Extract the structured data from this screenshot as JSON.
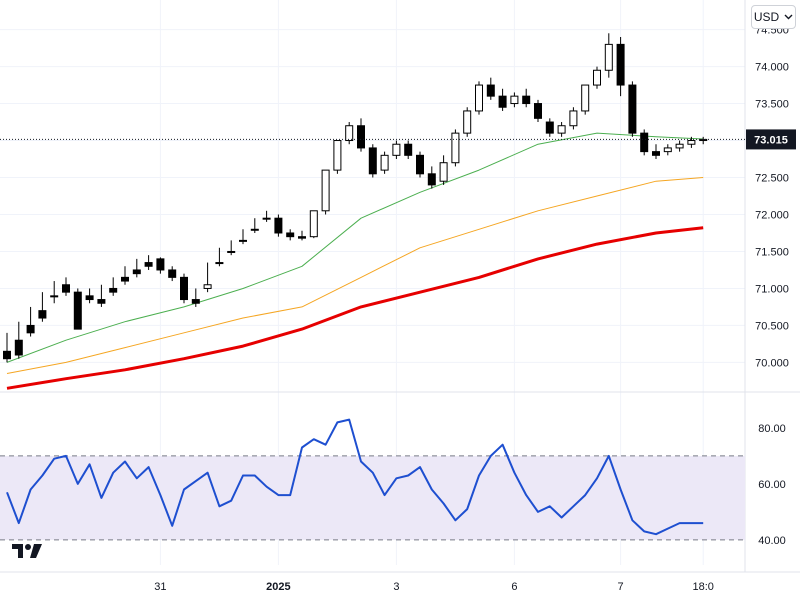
{
  "currency_selector": {
    "label": "USD",
    "icon": "chevron-down-icon"
  },
  "price_badge": {
    "value": "73.015",
    "color": "#131722"
  },
  "logo": {
    "text": "17"
  },
  "colors": {
    "up": "#ffffff",
    "down": "#000000",
    "wick": "#000000",
    "sma_short": "#4caf50",
    "sma_mid": "#f5a623",
    "sma_long": "#e60000",
    "rsi_line": "#1e4fd0",
    "rsi_band": "#ece8f7"
  },
  "chart_data": [
    {
      "type": "candlestick",
      "title": "",
      "y_ticks": [
        "74.500",
        "74.000",
        "73.500",
        "73.000",
        "72.500",
        "72.000",
        "71.500",
        "71.000",
        "70.500",
        "70.000"
      ],
      "ylim": [
        69.6,
        74.9
      ],
      "x_ticks": [
        {
          "label": "31",
          "t": 13
        },
        {
          "label": "2025",
          "t": 23,
          "bold": true
        },
        {
          "label": "3",
          "t": 33
        },
        {
          "label": "6",
          "t": 43
        },
        {
          "label": "7",
          "t": 52
        },
        {
          "label": "18:0",
          "t": 59
        }
      ],
      "last_price": 73.015,
      "candles": [
        [
          70.15,
          70.4,
          70.05,
          70.0
        ],
        [
          70.3,
          70.55,
          70.1,
          70.05
        ],
        [
          70.5,
          70.75,
          70.4,
          70.35
        ],
        [
          70.7,
          70.95,
          70.6,
          70.55
        ],
        [
          70.9,
          71.1,
          70.9,
          70.8
        ],
        [
          71.05,
          71.15,
          70.95,
          70.9
        ],
        [
          70.95,
          71.0,
          70.45,
          70.45
        ],
        [
          70.9,
          71.0,
          70.85,
          70.8
        ],
        [
          70.85,
          71.05,
          70.8,
          70.75
        ],
        [
          71.0,
          71.15,
          70.95,
          70.9
        ],
        [
          71.15,
          71.3,
          71.1,
          71.05
        ],
        [
          71.25,
          71.4,
          71.2,
          71.15
        ],
        [
          71.35,
          71.45,
          71.3,
          71.25
        ],
        [
          71.4,
          71.42,
          71.25,
          71.2
        ],
        [
          71.25,
          71.3,
          71.15,
          71.1
        ],
        [
          71.15,
          71.2,
          70.85,
          70.8
        ],
        [
          70.85,
          71.0,
          70.8,
          70.75
        ],
        [
          71.0,
          71.35,
          71.05,
          70.95
        ],
        [
          71.35,
          71.55,
          71.35,
          71.3
        ],
        [
          71.5,
          71.65,
          71.5,
          71.45
        ],
        [
          71.65,
          71.8,
          71.65,
          71.6
        ],
        [
          71.8,
          71.95,
          71.8,
          71.75
        ],
        [
          71.95,
          72.05,
          71.95,
          71.9
        ],
        [
          71.95,
          72.0,
          71.75,
          71.7
        ],
        [
          71.75,
          71.8,
          71.7,
          71.65
        ],
        [
          71.7,
          71.78,
          71.68,
          71.65
        ],
        [
          71.7,
          72.05,
          72.05,
          71.68
        ],
        [
          72.05,
          72.6,
          72.6,
          72.0
        ],
        [
          72.6,
          73.0,
          73.0,
          72.55
        ],
        [
          73.0,
          73.25,
          73.2,
          72.95
        ],
        [
          73.2,
          73.3,
          72.9,
          72.85
        ],
        [
          72.9,
          72.95,
          72.55,
          72.5
        ],
        [
          72.6,
          72.85,
          72.8,
          72.55
        ],
        [
          72.8,
          73.0,
          72.95,
          72.75
        ],
        [
          72.95,
          73.0,
          72.8,
          72.75
        ],
        [
          72.8,
          72.85,
          72.55,
          72.5
        ],
        [
          72.55,
          72.65,
          72.4,
          72.35
        ],
        [
          72.45,
          72.8,
          72.7,
          72.4
        ],
        [
          72.7,
          73.15,
          73.1,
          72.65
        ],
        [
          73.1,
          73.45,
          73.4,
          73.05
        ],
        [
          73.4,
          73.8,
          73.75,
          73.35
        ],
        [
          73.75,
          73.85,
          73.6,
          73.55
        ],
        [
          73.6,
          73.7,
          73.45,
          73.4
        ],
        [
          73.5,
          73.65,
          73.6,
          73.45
        ],
        [
          73.6,
          73.7,
          73.5,
          73.45
        ],
        [
          73.5,
          73.55,
          73.3,
          73.25
        ],
        [
          73.25,
          73.3,
          73.1,
          73.05
        ],
        [
          73.1,
          73.25,
          73.2,
          73.05
        ],
        [
          73.2,
          73.45,
          73.4,
          73.15
        ],
        [
          73.4,
          73.75,
          73.75,
          73.35
        ],
        [
          73.75,
          74.0,
          73.95,
          73.7
        ],
        [
          73.95,
          74.45,
          74.3,
          73.85
        ],
        [
          74.3,
          74.4,
          73.75,
          73.6
        ],
        [
          73.75,
          73.8,
          73.1,
          73.05
        ],
        [
          73.1,
          73.15,
          72.85,
          72.8
        ],
        [
          72.85,
          72.95,
          72.8,
          72.75
        ],
        [
          72.85,
          72.95,
          72.9,
          72.8
        ],
        [
          72.9,
          73.0,
          72.95,
          72.85
        ],
        [
          72.95,
          73.05,
          73.0,
          72.9
        ],
        [
          73.0,
          73.05,
          73.015,
          72.95
        ]
      ],
      "series": [
        {
          "name": "",
          "color": "#4caf50",
          "width": 1,
          "x": [
            0,
            5,
            10,
            15,
            20,
            25,
            30,
            35,
            40,
            45,
            50,
            55,
            59
          ],
          "values": [
            70.0,
            70.3,
            70.55,
            70.75,
            71.0,
            71.3,
            71.95,
            72.3,
            72.6,
            72.95,
            73.1,
            73.05,
            73.02
          ]
        },
        {
          "name": "",
          "color": "#f5a623",
          "width": 1,
          "x": [
            0,
            5,
            10,
            15,
            20,
            25,
            30,
            35,
            40,
            45,
            50,
            55,
            59
          ],
          "values": [
            69.85,
            70.0,
            70.2,
            70.4,
            70.6,
            70.75,
            71.15,
            71.55,
            71.8,
            72.05,
            72.25,
            72.45,
            72.5
          ]
        },
        {
          "name": "",
          "color": "#e60000",
          "width": 3,
          "x": [
            0,
            5,
            10,
            15,
            20,
            25,
            30,
            35,
            40,
            45,
            50,
            55,
            59
          ],
          "values": [
            69.65,
            69.78,
            69.9,
            70.05,
            70.22,
            70.45,
            70.75,
            70.95,
            71.15,
            71.4,
            71.6,
            71.75,
            71.82
          ]
        }
      ]
    },
    {
      "type": "line",
      "title": "",
      "y_ticks": [
        "80.00",
        "60.00",
        "40.00"
      ],
      "ylim": [
        31,
        90
      ],
      "band": [
        40,
        70
      ],
      "series": [
        {
          "name": "",
          "color": "#1e4fd0",
          "x": [
            0,
            1,
            2,
            3,
            4,
            5,
            6,
            7,
            8,
            9,
            10,
            11,
            12,
            13,
            14,
            15,
            16,
            17,
            18,
            19,
            20,
            21,
            22,
            23,
            24,
            25,
            26,
            27,
            28,
            29,
            30,
            31,
            32,
            33,
            34,
            35,
            36,
            37,
            38,
            39,
            40,
            41,
            42,
            43,
            44,
            45,
            46,
            47,
            48,
            49,
            50,
            51,
            52,
            53,
            54,
            55,
            56,
            57,
            58,
            59
          ],
          "values": [
            57,
            46,
            58,
            63,
            69,
            70,
            60,
            67,
            55,
            64,
            68,
            62,
            66,
            56,
            45,
            58,
            61,
            64,
            52,
            54,
            63,
            63,
            59,
            56,
            56,
            73,
            76,
            74,
            82,
            83,
            68,
            64,
            56,
            62,
            63,
            66,
            58,
            53,
            47,
            51,
            63,
            70,
            74,
            64,
            56,
            50,
            52,
            48,
            52,
            56,
            62,
            70,
            58,
            47,
            43,
            42,
            44,
            46,
            46,
            46
          ]
        }
      ]
    }
  ]
}
